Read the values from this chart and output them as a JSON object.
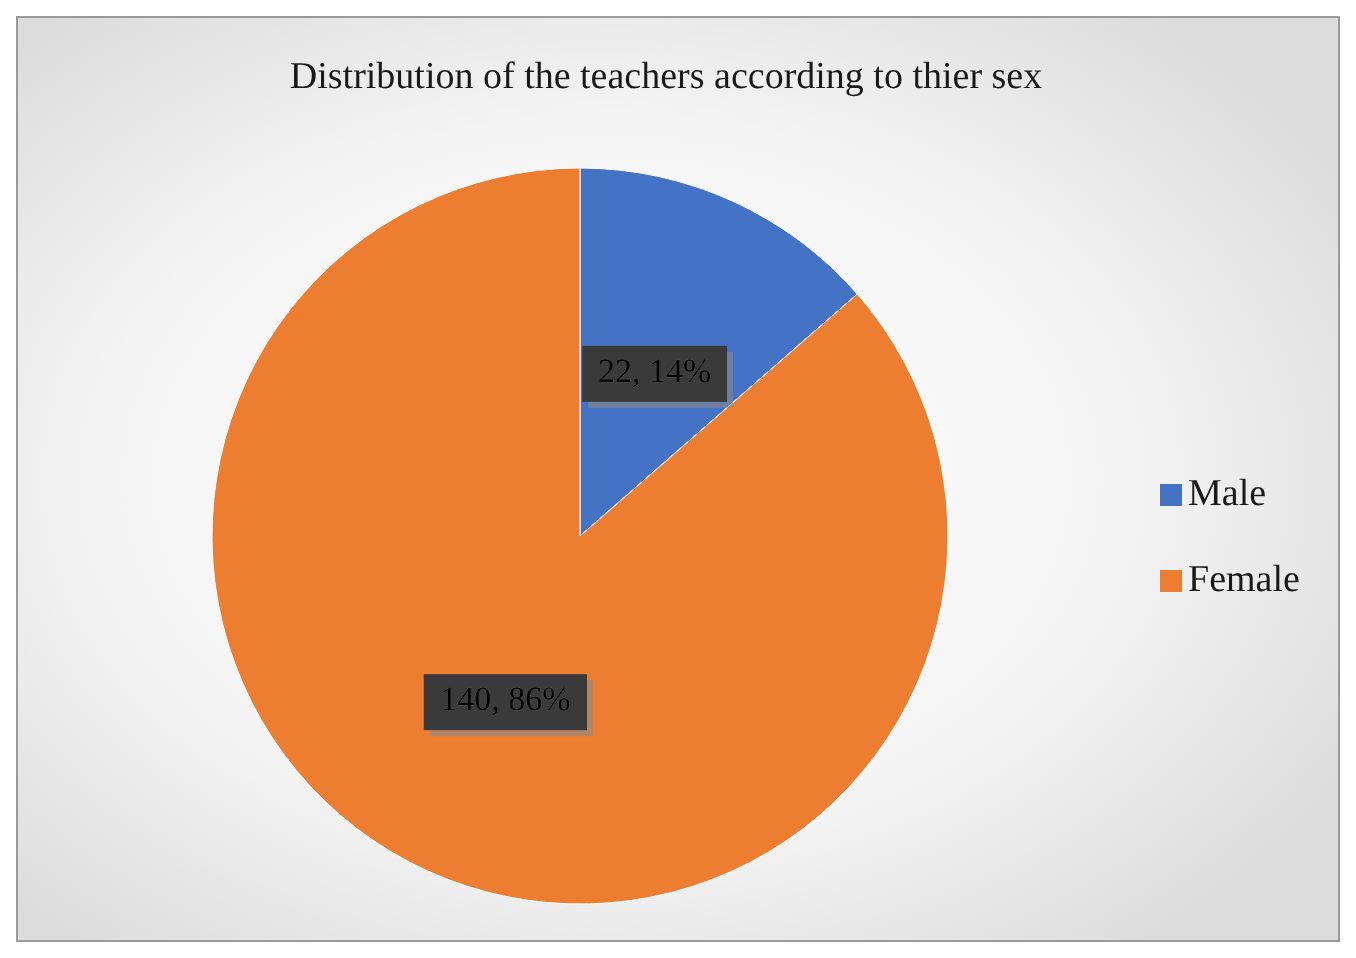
{
  "chart_data": {
    "type": "pie",
    "title": "Distribution of the teachers according to thier sex",
    "categories": [
      "Male",
      "Female"
    ],
    "values": [
      22,
      140
    ],
    "colors": [
      "#4472c4",
      "#ed7d31"
    ],
    "value_labels": [
      "22, 14%",
      "140, 86%"
    ],
    "legend": "right"
  }
}
